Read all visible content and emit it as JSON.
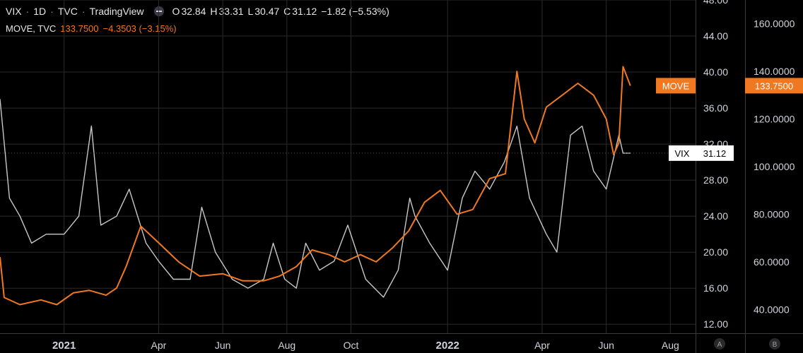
{
  "legend": {
    "symbol": "VIX",
    "interval": "1D",
    "exchange": "TVC",
    "source": "TradingView",
    "open_label": "O",
    "open": "32.84",
    "high_label": "H",
    "high": "33.31",
    "low_label": "L",
    "low": "30.47",
    "close_label": "C",
    "close": "31.12",
    "change": "−1.82 (−5.53%)",
    "second_symbol": "MOVE, TVC",
    "second_value": "133.7500",
    "second_change": "−4.3503 (−3.15%)"
  },
  "colors": {
    "background": "#000000",
    "vix": "#c8c8c8",
    "move": "#f07820",
    "grid": "#2a2a2a",
    "axis_text": "#d1d4dc"
  },
  "chart_data": {
    "type": "line",
    "x_ticks": [
      "2021",
      "Apr",
      "Jun",
      "Aug",
      "Oct",
      "2022",
      "Apr",
      "Jun",
      "Aug"
    ],
    "x_tick_dates": [
      "2021-01-01",
      "2021-04-01",
      "2021-06-01",
      "2021-08-01",
      "2021-10-01",
      "2022-01-01",
      "2022-04-01",
      "2022-06-01",
      "2022-08-01"
    ],
    "x_range": [
      "2020-11-01",
      "2022-08-25"
    ],
    "y_left": {
      "ticks": [
        "12.00",
        "16.00",
        "20.00",
        "24.00",
        "28.00",
        "32.00",
        "36.00",
        "40.00",
        "44.00",
        "48.00"
      ],
      "range": [
        11,
        48
      ]
    },
    "y_right": {
      "ticks": [
        "40.0000",
        "60.0000",
        "80.0000",
        "100.0000",
        "120.0000",
        "140.0000",
        "160.0000"
      ],
      "range": [
        30,
        170
      ]
    },
    "bottom_buttons": [
      "A",
      "B"
    ],
    "series": [
      {
        "name": "VIX",
        "axis": "left",
        "last_label": "31.12",
        "dates": [
          "2020-11-01",
          "2020-11-10",
          "2020-11-20",
          "2020-12-01",
          "2020-12-15",
          "2021-01-01",
          "2021-01-15",
          "2021-01-27",
          "2021-02-05",
          "2021-02-20",
          "2021-03-04",
          "2021-03-20",
          "2021-04-01",
          "2021-04-15",
          "2021-05-01",
          "2021-05-12",
          "2021-05-25",
          "2021-06-10",
          "2021-06-25",
          "2021-07-10",
          "2021-07-19",
          "2021-07-30",
          "2021-08-10",
          "2021-08-19",
          "2021-09-01",
          "2021-09-15",
          "2021-09-28",
          "2021-10-15",
          "2021-11-01",
          "2021-11-15",
          "2021-11-26",
          "2021-12-01",
          "2021-12-15",
          "2022-01-01",
          "2022-01-15",
          "2022-01-27",
          "2022-02-10",
          "2022-02-24",
          "2022-03-08",
          "2022-03-20",
          "2022-04-05",
          "2022-04-15",
          "2022-04-28",
          "2022-05-09",
          "2022-05-20",
          "2022-06-01",
          "2022-06-13",
          "2022-06-17",
          "2022-06-24"
        ],
        "values": [
          37,
          26,
          24,
          21,
          22,
          22,
          24,
          34,
          23,
          24,
          27,
          21,
          19,
          17,
          17,
          25,
          20,
          17,
          16,
          17,
          21,
          17,
          16,
          21,
          18,
          19,
          23,
          17,
          15,
          18,
          26,
          24,
          21,
          18,
          26,
          29,
          27,
          30,
          34,
          26,
          22,
          20,
          33,
          34,
          29,
          27,
          33,
          31,
          31
        ]
      },
      {
        "name": "MOVE",
        "axis": "right",
        "last_label": "133.7500",
        "dates": [
          "2020-11-01",
          "2020-11-05",
          "2020-11-20",
          "2020-12-10",
          "2020-12-25",
          "2021-01-10",
          "2021-01-25",
          "2021-02-10",
          "2021-02-20",
          "2021-03-01",
          "2021-03-15",
          "2021-04-01",
          "2021-04-20",
          "2021-05-10",
          "2021-06-01",
          "2021-06-20",
          "2021-07-10",
          "2021-07-25",
          "2021-08-10",
          "2021-08-25",
          "2021-09-10",
          "2021-09-25",
          "2021-10-10",
          "2021-10-25",
          "2021-11-10",
          "2021-11-25",
          "2021-12-10",
          "2021-12-25",
          "2022-01-10",
          "2022-01-25",
          "2022-02-10",
          "2022-02-25",
          "2022-03-08",
          "2022-03-15",
          "2022-03-25",
          "2022-04-05",
          "2022-04-20",
          "2022-05-05",
          "2022-05-20",
          "2022-06-01",
          "2022-06-08",
          "2022-06-13",
          "2022-06-17",
          "2022-06-24"
        ],
        "values": [
          62,
          45,
          42,
          44,
          42,
          47,
          48,
          46,
          49,
          58,
          75,
          68,
          60,
          54,
          55,
          52,
          52,
          54,
          58,
          65,
          63,
          60,
          63,
          60,
          66,
          73,
          85,
          90,
          80,
          82,
          95,
          97,
          140,
          120,
          110,
          125,
          130,
          135,
          130,
          120,
          105,
          110,
          142,
          134
        ]
      }
    ]
  }
}
